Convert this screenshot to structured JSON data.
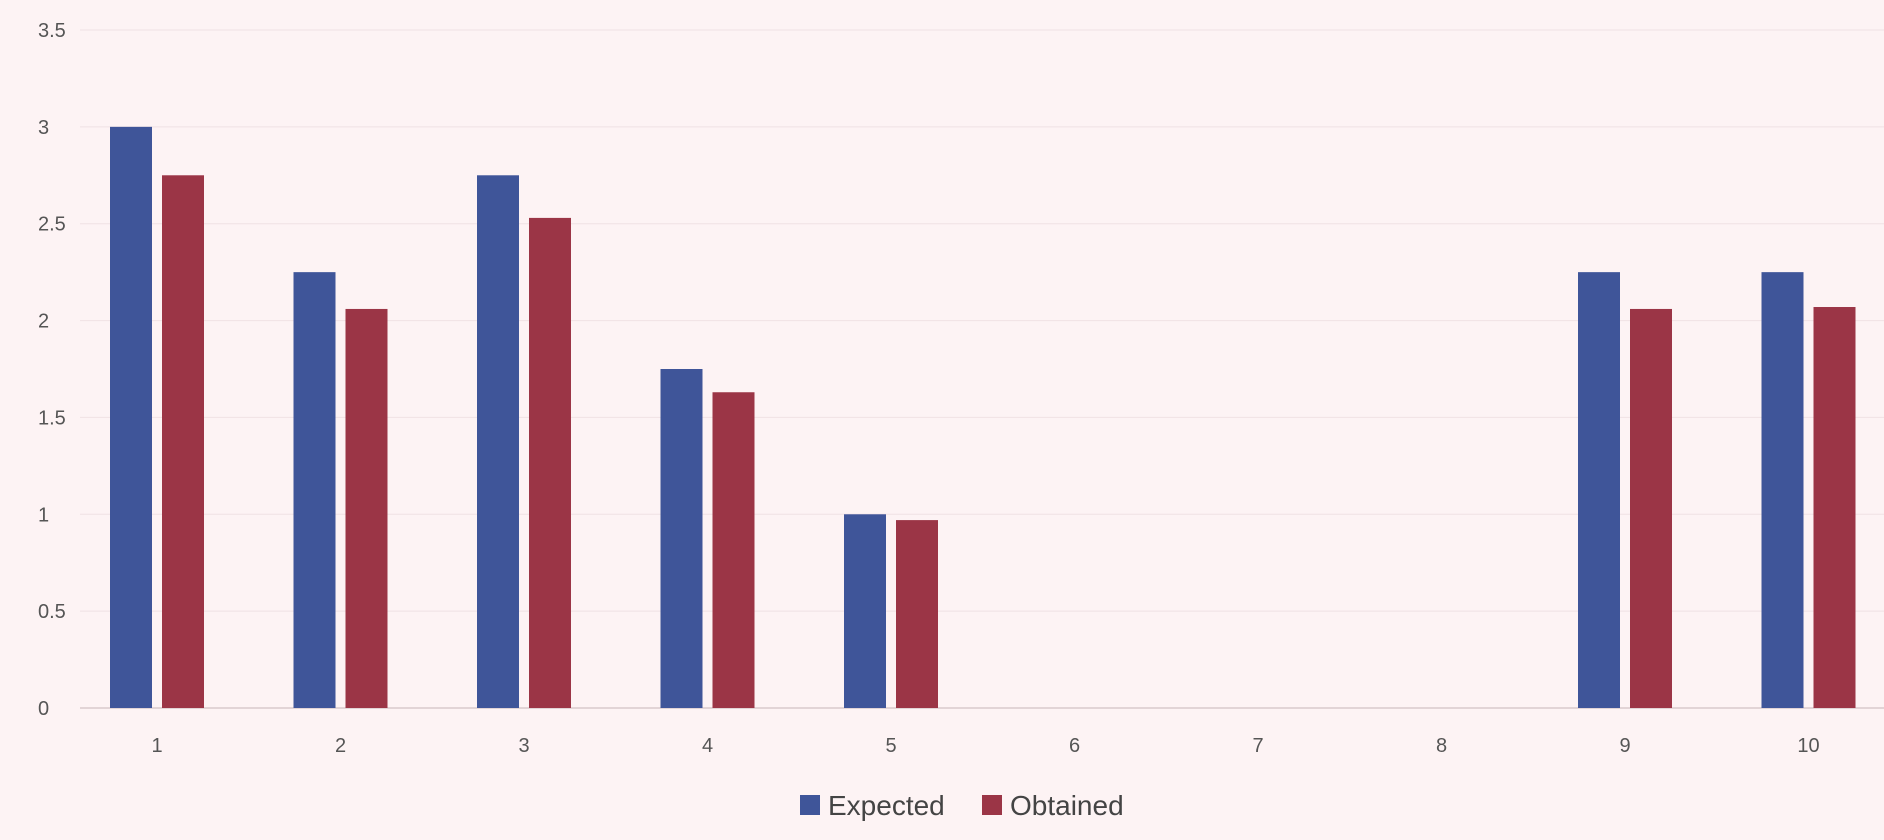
{
  "chart_data": {
    "type": "bar",
    "categories": [
      "1",
      "2",
      "3",
      "4",
      "5",
      "6",
      "7",
      "8",
      "9",
      "10"
    ],
    "series": [
      {
        "name": "Expected",
        "color": "#3f5599",
        "values": [
          3.0,
          2.25,
          2.75,
          1.75,
          1.0,
          0,
          0,
          0,
          2.25,
          2.25
        ]
      },
      {
        "name": "Obtained",
        "color": "#9b3546",
        "values": [
          2.75,
          2.06,
          2.53,
          1.63,
          0.97,
          0,
          0,
          0,
          2.06,
          2.07
        ]
      }
    ],
    "ylim": [
      0,
      3.5
    ],
    "yticks": [
      "0",
      "0.5",
      "1",
      "1.5",
      "2",
      "2.5",
      "3",
      "3.5"
    ],
    "grid": true,
    "legend": "bottom"
  }
}
